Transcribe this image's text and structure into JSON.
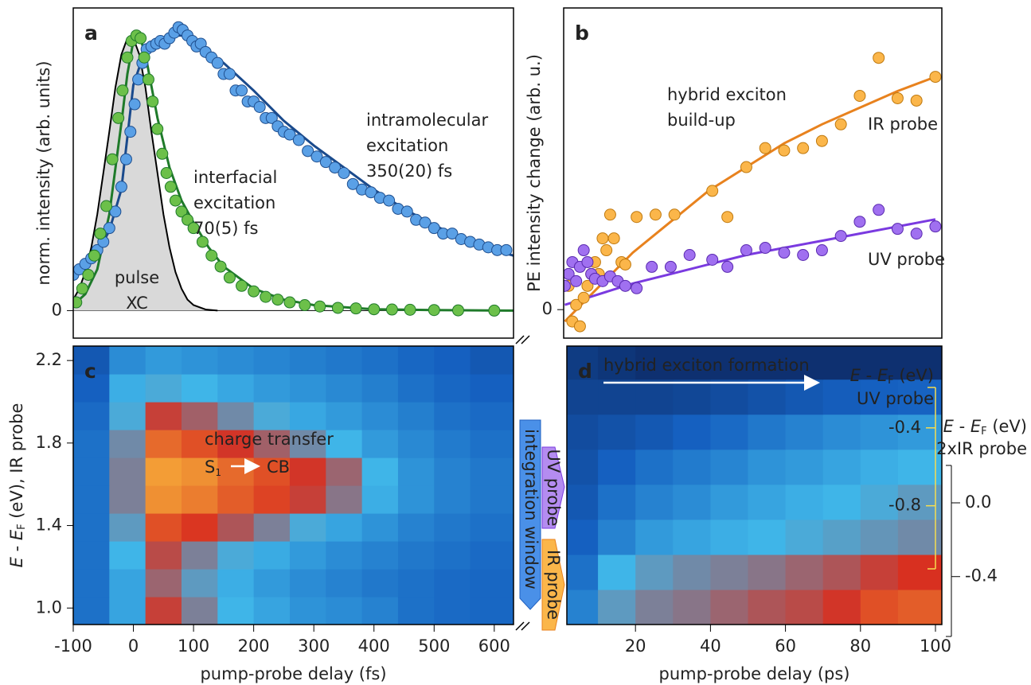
{
  "chart_data": [
    {
      "type": "scatter",
      "panel": "a",
      "ylabel": "norm. intensity (arb. units)",
      "xlim": [
        -100,
        632
      ],
      "ylim": [
        -0.1,
        1.1
      ],
      "yticks": [
        0
      ],
      "grid": true,
      "series": [
        {
          "style": "area",
          "color": "#d9d9d9",
          "edgecolor": "#000000",
          "x": [
            -100,
            -90,
            -80,
            -70,
            -60,
            -50,
            -40,
            -30,
            -20,
            -10,
            0,
            10,
            20,
            30,
            40,
            50,
            60,
            70,
            80,
            90,
            100,
            120,
            140
          ],
          "values": [
            0.04,
            0.08,
            0.14,
            0.23,
            0.35,
            0.5,
            0.65,
            0.81,
            0.93,
            0.99,
            0.99,
            0.93,
            0.81,
            0.65,
            0.5,
            0.35,
            0.23,
            0.14,
            0.08,
            0.04,
            0.02,
            0.004,
            0
          ]
        },
        {
          "style": "line",
          "color": "#1a4a8c",
          "x": [
            -100,
            -80,
            -60,
            -40,
            -20,
            0,
            20,
            40,
            60,
            80,
            100,
            150,
            200,
            250,
            300,
            350,
            400,
            450,
            500,
            550,
            600,
            632
          ],
          "values": [
            0.13,
            0.16,
            0.21,
            0.29,
            0.44,
            0.82,
            0.95,
            0.98,
            1.0,
            1.0,
            0.98,
            0.9,
            0.8,
            0.69,
            0.6,
            0.52,
            0.44,
            0.37,
            0.31,
            0.26,
            0.22,
            0.2
          ]
        },
        {
          "style": "line",
          "color": "#1f7a2a",
          "x": [
            -100,
            -80,
            -60,
            -40,
            -20,
            -10,
            0,
            10,
            20,
            40,
            60,
            80,
            100,
            125,
            150,
            200,
            250,
            300,
            400,
            500,
            632
          ],
          "values": [
            0.02,
            0.06,
            0.15,
            0.35,
            0.68,
            0.86,
            0.98,
            1.0,
            0.93,
            0.7,
            0.52,
            0.4,
            0.32,
            0.23,
            0.16,
            0.08,
            0.04,
            0.02,
            0.005,
            0.002,
            0
          ]
        },
        {
          "style": "markers",
          "color": "#5aa0e6",
          "edgecolor": "#1f4f8f",
          "x": [
            -100,
            -90,
            -80,
            -70,
            -60,
            -50,
            -40,
            -30,
            -20,
            -12,
            -5,
            2,
            8,
            15,
            22,
            30,
            38,
            45,
            52,
            60,
            68,
            75,
            82,
            90,
            98,
            105,
            112,
            120,
            130,
            140,
            150,
            160,
            170,
            180,
            190,
            200,
            210,
            220,
            230,
            240,
            250,
            260,
            275,
            290,
            305,
            320,
            335,
            350,
            365,
            380,
            395,
            410,
            425,
            440,
            455,
            470,
            485,
            500,
            515,
            530,
            545,
            560,
            575,
            590,
            605,
            620
          ],
          "values": [
            0.13,
            0.15,
            0.17,
            0.19,
            0.22,
            0.25,
            0.3,
            0.36,
            0.45,
            0.55,
            0.65,
            0.75,
            0.84,
            0.9,
            0.95,
            0.96,
            0.97,
            0.98,
            0.97,
            0.99,
            1.01,
            1.03,
            1.02,
            1.0,
            0.98,
            0.96,
            0.97,
            0.94,
            0.92,
            0.9,
            0.86,
            0.86,
            0.8,
            0.8,
            0.76,
            0.76,
            0.74,
            0.7,
            0.7,
            0.67,
            0.65,
            0.64,
            0.62,
            0.58,
            0.56,
            0.54,
            0.52,
            0.5,
            0.46,
            0.44,
            0.43,
            0.41,
            0.4,
            0.37,
            0.36,
            0.33,
            0.32,
            0.3,
            0.28,
            0.28,
            0.26,
            0.25,
            0.24,
            0.23,
            0.22,
            0.22
          ]
        },
        {
          "style": "markers",
          "color": "#6cc04a",
          "edgecolor": "#1f7a2a",
          "x": [
            -95,
            -85,
            -75,
            -65,
            -55,
            -45,
            -35,
            -25,
            -18,
            -10,
            -3,
            5,
            12,
            18,
            25,
            32,
            40,
            48,
            55,
            62,
            70,
            80,
            90,
            100,
            115,
            130,
            145,
            160,
            180,
            200,
            220,
            240,
            260,
            285,
            310,
            340,
            370,
            400,
            430,
            460,
            500,
            540,
            600
          ],
          "values": [
            0.03,
            0.08,
            0.13,
            0.2,
            0.28,
            0.38,
            0.55,
            0.7,
            0.8,
            0.92,
            0.98,
            1.0,
            0.99,
            0.92,
            0.84,
            0.76,
            0.66,
            0.57,
            0.5,
            0.45,
            0.4,
            0.36,
            0.33,
            0.3,
            0.25,
            0.2,
            0.16,
            0.12,
            0.09,
            0.07,
            0.05,
            0.04,
            0.03,
            0.02,
            0.015,
            0.01,
            0.008,
            0.005,
            0.004,
            0.003,
            0.002,
            0.001,
            0
          ]
        }
      ],
      "annotations": [
        {
          "color": "#1f4f8f",
          "lines": [
            "intramolecular",
            "excitation",
            "350(20) fs"
          ]
        },
        {
          "color": "#1f7a2a",
          "lines": [
            "interfacial",
            "excitation",
            "70(5) fs"
          ]
        },
        {
          "color": "#9a9a9a",
          "lines": [
            "pulse",
            "XC"
          ]
        }
      ]
    },
    {
      "type": "scatter",
      "panel": "b",
      "ylabel": "PE intensity change (arb. u.)",
      "xlim": [
        1.7,
        101.7
      ],
      "ylim": [
        -0.12,
        1.27
      ],
      "yticks": [
        0
      ],
      "grid": false,
      "series": [
        {
          "style": "line",
          "color": "#e8821e",
          "x": [
            2,
            10,
            20,
            30,
            40,
            50,
            60,
            70,
            80,
            90,
            100
          ],
          "values": [
            -0.05,
            0.08,
            0.24,
            0.37,
            0.5,
            0.6,
            0.7,
            0.78,
            0.85,
            0.92,
            0.98
          ]
        },
        {
          "style": "line",
          "color": "#7a3ae0",
          "x": [
            2,
            10,
            20,
            30,
            40,
            50,
            60,
            70,
            80,
            90,
            100
          ],
          "values": [
            0.02,
            0.06,
            0.11,
            0.15,
            0.19,
            0.23,
            0.26,
            0.29,
            0.32,
            0.35,
            0.38
          ]
        },
        {
          "style": "markers",
          "color": "#fbb64a",
          "edgecolor": "#c07a10",
          "x": [
            3,
            4,
            5,
            6,
            7,
            8,
            9,
            10,
            11,
            12,
            13,
            14,
            15,
            17,
            18,
            21,
            26,
            31,
            41,
            45,
            50,
            55,
            60,
            65,
            70,
            75,
            80,
            85,
            90,
            95,
            100
          ],
          "values": [
            0.1,
            -0.05,
            0.02,
            -0.07,
            0.05,
            0.1,
            0.15,
            0.2,
            0.15,
            0.3,
            0.25,
            0.4,
            0.3,
            0.2,
            0.19,
            0.39,
            0.4,
            0.4,
            0.5,
            0.39,
            0.6,
            0.68,
            0.67,
            0.68,
            0.71,
            0.78,
            0.9,
            1.06,
            0.89,
            0.88,
            0.98
          ]
        },
        {
          "style": "markers",
          "color": "#a070f0",
          "edgecolor": "#5a2ab0",
          "x": [
            2,
            3,
            4,
            5,
            6,
            7,
            8,
            9,
            10,
            12,
            14,
            16,
            18,
            21,
            25,
            30,
            35,
            41,
            45,
            50,
            55,
            60,
            65,
            70,
            75,
            80,
            85,
            90,
            95,
            100
          ],
          "values": [
            0.1,
            0.15,
            0.2,
            0.12,
            0.18,
            0.25,
            0.2,
            0.15,
            0.13,
            0.12,
            0.14,
            0.12,
            0.1,
            0.09,
            0.18,
            0.18,
            0.23,
            0.21,
            0.18,
            0.25,
            0.26,
            0.24,
            0.23,
            0.25,
            0.31,
            0.37,
            0.42,
            0.34,
            0.32,
            0.35
          ]
        }
      ],
      "annotations": [
        {
          "color": "#111111",
          "lines": [
            "hybrid exciton",
            "build-up"
          ]
        },
        {
          "color": "#e8821e",
          "lines": [
            "IR probe"
          ]
        },
        {
          "color": "#7a3ae0",
          "lines": [
            "UV probe"
          ]
        }
      ]
    },
    {
      "type": "heatmap",
      "panel": "c",
      "xlabel": "pump-probe delay (fs)",
      "ylabel": [
        "E",
        " - ",
        "E",
        "F",
        " (eV), IR probe"
      ],
      "xlim": [
        -100,
        632
      ],
      "ylim": [
        0.92,
        2.27
      ],
      "xticks": [
        -100,
        0,
        100,
        200,
        300,
        400,
        500,
        600
      ],
      "yticks": [
        {
          "value": 1.0,
          "label": "1.0"
        },
        1.4,
        1.8,
        2.2
      ],
      "colormap": [
        "#0a1a4a",
        "#1560c0",
        "#3fb5e8",
        "#d83020",
        "#ffd040"
      ],
      "xbins": [
        -100,
        -40,
        20,
        80,
        140,
        200,
        260,
        320,
        380,
        440,
        500,
        560,
        632
      ],
      "ybins": [
        0.92,
        1.055,
        1.19,
        1.325,
        1.46,
        1.595,
        1.73,
        1.865,
        2.0,
        2.135,
        2.27
      ],
      "z": [
        [
          0.3,
          0.45,
          0.72,
          0.6,
          0.5,
          0.45,
          0.4,
          0.38,
          0.35,
          0.3,
          0.28,
          0.27
        ],
        [
          0.3,
          0.45,
          0.65,
          0.55,
          0.48,
          0.42,
          0.38,
          0.35,
          0.32,
          0.3,
          0.28,
          0.27
        ],
        [
          0.3,
          0.5,
          0.7,
          0.6,
          0.52,
          0.47,
          0.42,
          0.38,
          0.35,
          0.32,
          0.3,
          0.28
        ],
        [
          0.3,
          0.55,
          0.8,
          0.76,
          0.68,
          0.6,
          0.52,
          0.45,
          0.4,
          0.35,
          0.32,
          0.3
        ],
        [
          0.3,
          0.6,
          0.9,
          0.87,
          0.82,
          0.78,
          0.72,
          0.62,
          0.48,
          0.4,
          0.35,
          0.32
        ],
        [
          0.3,
          0.6,
          0.92,
          0.9,
          0.84,
          0.8,
          0.74,
          0.65,
          0.5,
          0.4,
          0.35,
          0.32
        ],
        [
          0.3,
          0.58,
          0.84,
          0.8,
          0.74,
          0.66,
          0.58,
          0.5,
          0.42,
          0.37,
          0.33,
          0.3
        ],
        [
          0.28,
          0.52,
          0.72,
          0.66,
          0.58,
          0.52,
          0.46,
          0.42,
          0.38,
          0.34,
          0.3,
          0.28
        ],
        [
          0.25,
          0.48,
          0.52,
          0.5,
          0.46,
          0.42,
          0.4,
          0.37,
          0.34,
          0.3,
          0.27,
          0.25
        ],
        [
          0.22,
          0.38,
          0.42,
          0.4,
          0.38,
          0.36,
          0.34,
          0.32,
          0.3,
          0.27,
          0.25,
          0.22
        ]
      ],
      "annotations": [
        {
          "color": "#ffffff",
          "lines": [
            "charge transfer"
          ]
        },
        {
          "color": "#ffffff",
          "parts": [
            "S",
            "1"
          ]
        },
        {
          "color": "#ffffff",
          "lines": [
            "CB"
          ]
        }
      ]
    },
    {
      "type": "heatmap",
      "panel": "d",
      "xlabel": "pump-probe delay (ps)",
      "xlim": [
        1.7,
        101.7
      ],
      "ylim": [
        -1.41,
        0.02
      ],
      "y2lim": [
        -0.66,
        0.85
      ],
      "xticks": [
        20,
        40,
        60,
        80,
        100
      ],
      "yticks": [
        -0.4,
        -0.8
      ],
      "y2ticks": [
        {
          "value": 0,
          "label": "0.0"
        },
        -0.4
      ],
      "ylabel": [
        "E",
        " - ",
        "E",
        "F",
        " (eV)",
        "UV probe"
      ],
      "y2label": [
        "E",
        " - ",
        "E",
        "F",
        " (eV)",
        "2xIR probe"
      ],
      "ycolor": "#f5dc50",
      "colormap": [
        "#0a1a4a",
        "#1560c0",
        "#3fb5e8",
        "#d83020",
        "#ffd040"
      ],
      "xbins": [
        1.7,
        10,
        20,
        30,
        40,
        50,
        60,
        70,
        80,
        90,
        101.7
      ],
      "ybins": [
        -1.41,
        -1.23,
        -1.05,
        -0.87,
        -0.69,
        -0.51,
        -0.33,
        -0.15,
        0.02
      ],
      "z": [
        [
          0.35,
          0.55,
          0.6,
          0.62,
          0.65,
          0.68,
          0.7,
          0.74,
          0.8,
          0.82
        ],
        [
          0.3,
          0.5,
          0.55,
          0.58,
          0.6,
          0.62,
          0.65,
          0.68,
          0.72,
          0.75
        ],
        [
          0.25,
          0.35,
          0.42,
          0.45,
          0.48,
          0.5,
          0.52,
          0.54,
          0.56,
          0.58
        ],
        [
          0.22,
          0.3,
          0.35,
          0.38,
          0.42,
          0.45,
          0.48,
          0.5,
          0.52,
          0.55
        ],
        [
          0.2,
          0.25,
          0.3,
          0.33,
          0.36,
          0.4,
          0.42,
          0.45,
          0.48,
          0.5
        ],
        [
          0.18,
          0.2,
          0.22,
          0.25,
          0.28,
          0.32,
          0.35,
          0.38,
          0.4,
          0.42
        ],
        [
          0.15,
          0.15,
          0.15,
          0.16,
          0.18,
          0.2,
          0.22,
          0.24,
          0.25,
          0.26
        ],
        [
          0.12,
          0.1,
          0.08,
          0.08,
          0.08,
          0.08,
          0.08,
          0.08,
          0.08,
          0.08
        ]
      ],
      "annotations": [
        {
          "color": "#ffffff",
          "lines": [
            "hybrid exciton formation"
          ]
        }
      ],
      "band_labels": [
        "integration window",
        "UV probe",
        "IR probe"
      ]
    }
  ]
}
